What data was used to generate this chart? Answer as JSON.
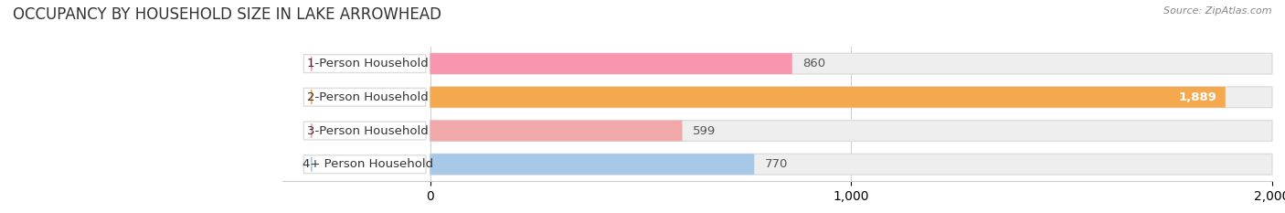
{
  "title": "OCCUPANCY BY HOUSEHOLD SIZE IN LAKE ARROWHEAD",
  "source": "Source: ZipAtlas.com",
  "categories": [
    "1-Person Household",
    "2-Person Household",
    "3-Person Household",
    "4+ Person Household"
  ],
  "values": [
    860,
    1889,
    599,
    770
  ],
  "bar_colors": [
    "#f796ae",
    "#f5a94e",
    "#f0a8a8",
    "#a8c8e8"
  ],
  "bar_bg_colors": [
    "#eeeeee",
    "#eeeeee",
    "#eeeeee",
    "#eeeeee"
  ],
  "xlim": [
    0,
    2000
  ],
  "xticks": [
    0,
    1000,
    2000
  ],
  "xtick_labels": [
    "0",
    "1,000",
    "2,000"
  ],
  "label_fontsize": 9.5,
  "title_fontsize": 12,
  "bar_height": 0.62,
  "figsize": [
    14.06,
    2.33
  ],
  "dpi": 100,
  "bg_color": "#ffffff"
}
